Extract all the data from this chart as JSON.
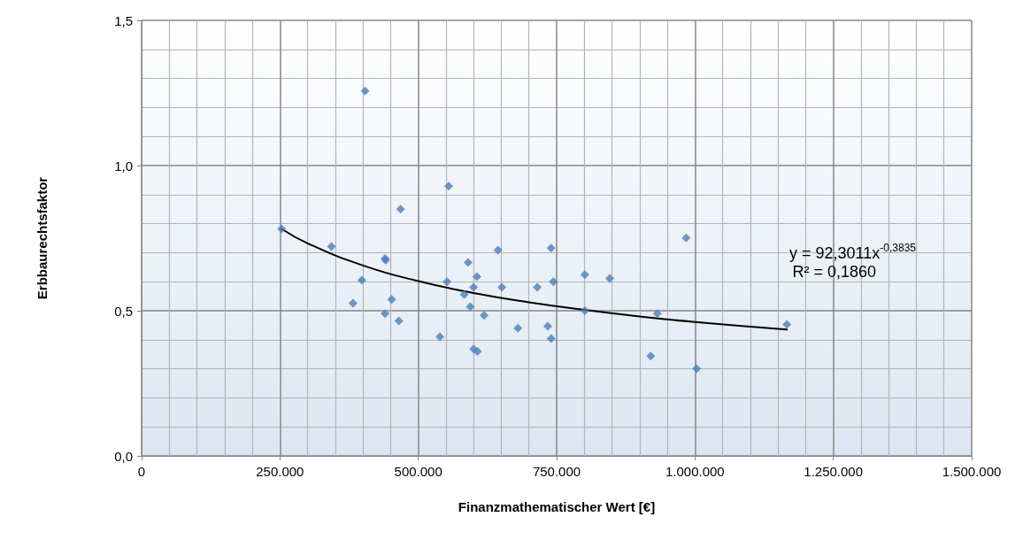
{
  "chart_data": {
    "type": "scatter",
    "xlabel": "Finanzmathematischer Wert [€]",
    "ylabel": "Erbbaurechtsfaktor",
    "xlim": [
      0,
      1500000
    ],
    "xticks": [
      0,
      {
        "value": 250000,
        "label": "250.000"
      },
      {
        "value": 500000,
        "label": "500.000"
      },
      {
        "value": 750000,
        "label": "750.000"
      },
      {
        "value": 1000000,
        "label": "1.000.000"
      },
      {
        "value": 1250000,
        "label": "1.250.000"
      },
      {
        "value": 1500000,
        "label": "1.500.000"
      }
    ],
    "ylim": [
      0,
      1.5
    ],
    "yticks": [
      {
        "value": 0,
        "label": "0,0"
      },
      {
        "value": 0.5,
        "label": "0,5"
      },
      {
        "value": 1,
        "label": "1,0"
      },
      {
        "value": 1.5,
        "label": "1,5"
      }
    ],
    "grid": true,
    "marker": "diamond",
    "annotations": [
      "y = 92,3011x$^{-0,3835}$",
      "R² = 0,1860"
    ],
    "series": [
      {
        "color": "#4a7ebb",
        "x": [
          404000,
          555000,
          468000,
          253000,
          343000,
          440000,
          441000,
          398000,
          382000,
          452000,
          440000,
          465000,
          539000,
          590000,
          606000,
          552000,
          600000,
          583000,
          594000,
          619000,
          600000,
          607000,
          644000,
          651000,
          680000,
          715000,
          740000,
          744000,
          734000,
          740000,
          801000,
          801000,
          846000,
          932000,
          920000,
          984000,
          1003000,
          1166000
        ],
        "values": [
          1.257,
          0.929,
          0.85,
          0.782,
          0.721,
          0.68,
          0.674,
          0.605,
          0.526,
          0.539,
          0.49,
          0.465,
          0.41,
          0.666,
          0.617,
          0.6,
          0.581,
          0.556,
          0.514,
          0.484,
          0.368,
          0.36,
          0.709,
          0.581,
          0.44,
          0.581,
          0.716,
          0.6,
          0.447,
          0.404,
          0.624,
          0.5,
          0.611,
          0.49,
          0.344,
          0.751,
          0.3,
          0.453
        ]
      },
      {
        "type": "line",
        "color": "#000000",
        "marker": "none",
        "line_style": "solid",
        "x": [
          253000,
          300000,
          400000,
          500000,
          600000,
          700000,
          800000,
          900000,
          1000000,
          1166000
        ],
        "values": [
          0.782,
          0.732,
          0.656,
          0.602,
          0.561,
          0.529,
          0.503,
          0.48,
          0.461,
          0.435
        ]
      }
    ]
  }
}
